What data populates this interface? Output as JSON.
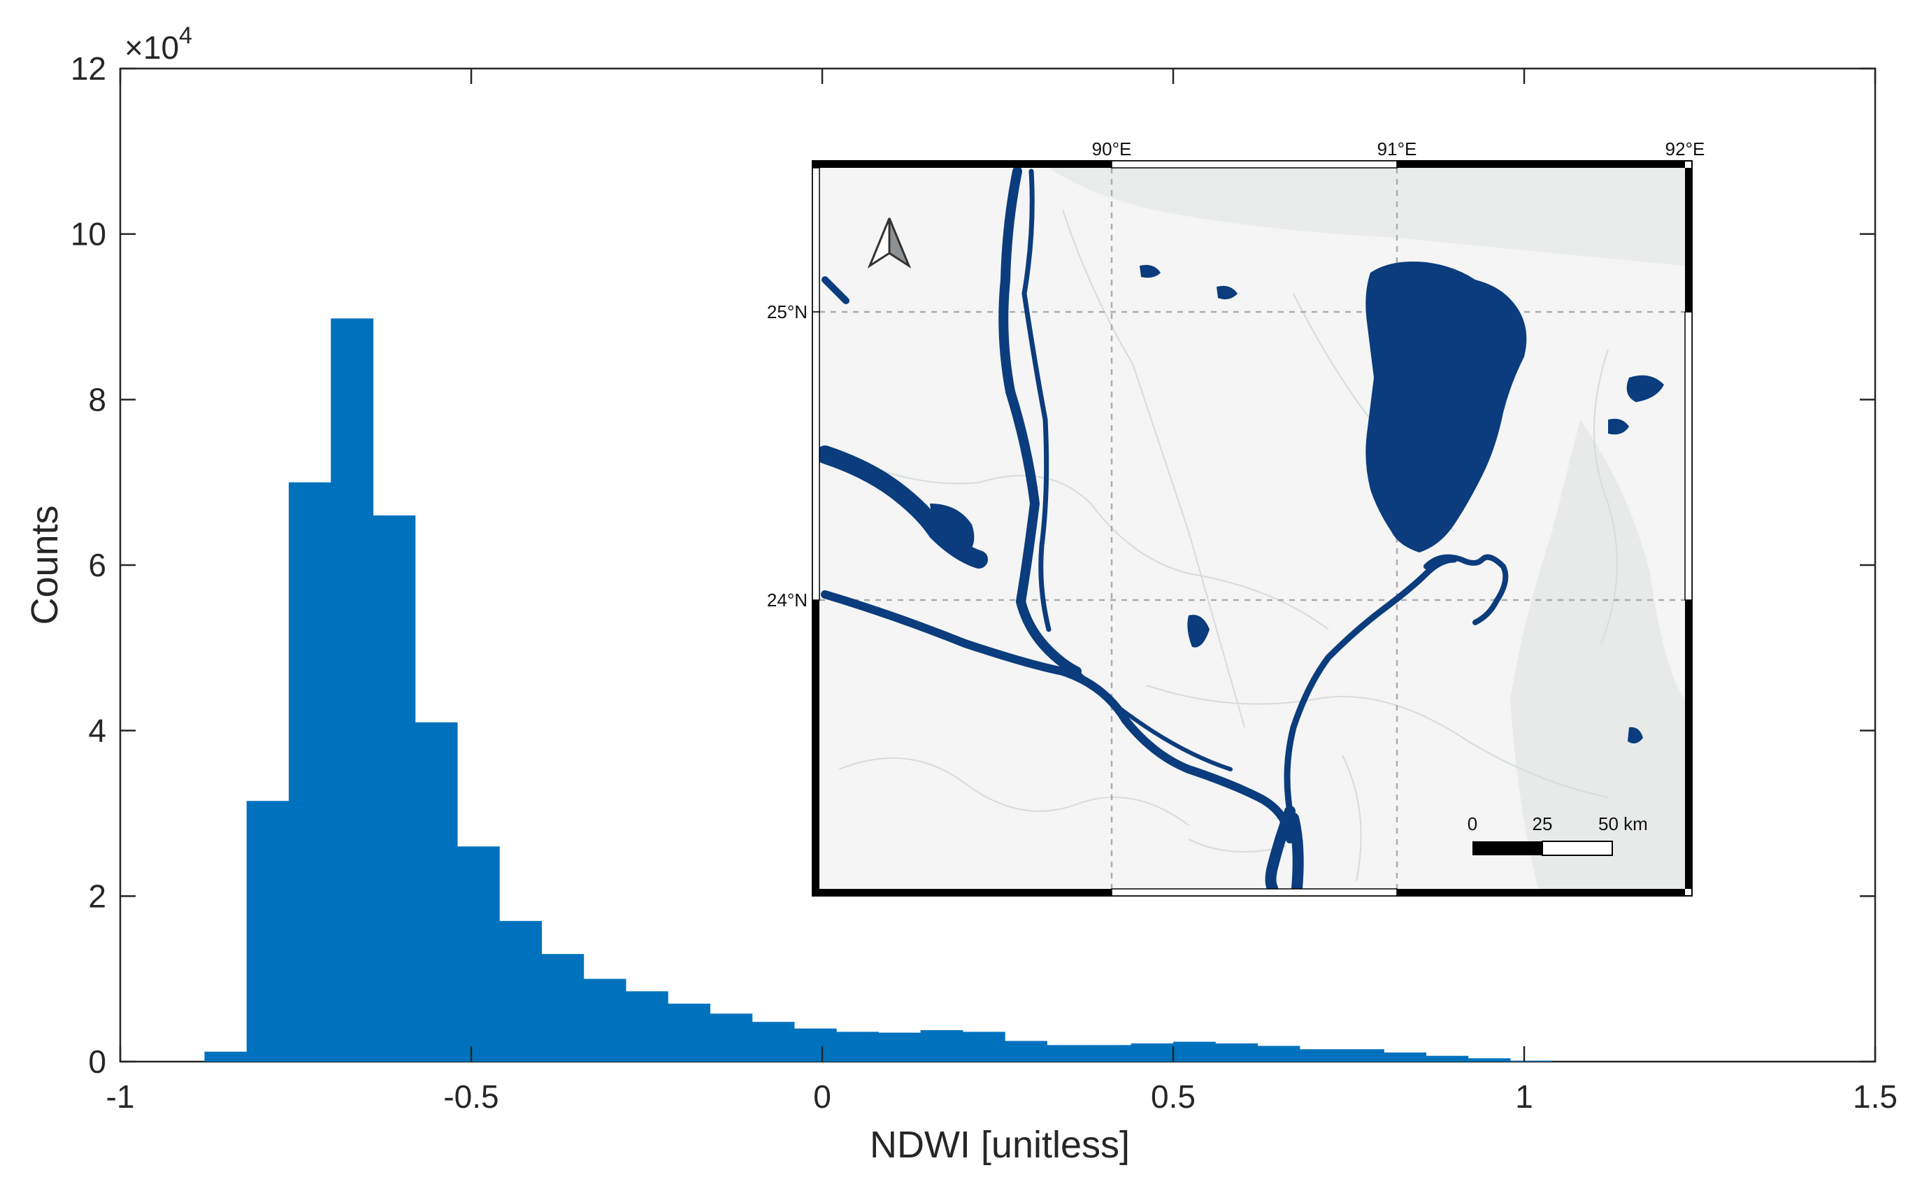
{
  "chart_data": {
    "type": "bar",
    "subtype": "histogram",
    "xlabel": "NDWI [unitless]",
    "ylabel": "Counts",
    "y_exponent_label": "×10",
    "y_exponent_power": "4",
    "xlim": [
      -1,
      1.5
    ],
    "ylim": [
      0,
      12
    ],
    "x_ticks": [
      -1,
      -0.5,
      0,
      0.5,
      1,
      1.5
    ],
    "x_tick_labels": [
      "-1",
      "-0.5",
      "0",
      "0.5",
      "1",
      "1.5"
    ],
    "y_ticks": [
      0,
      2,
      4,
      6,
      8,
      10,
      12
    ],
    "y_tick_labels": [
      "0",
      "2",
      "4",
      "6",
      "8",
      "10",
      "12"
    ],
    "bar_color": "#0072BD",
    "bin_edges": [
      -0.88,
      -0.82,
      -0.76,
      -0.7,
      -0.64,
      -0.58,
      -0.52,
      -0.46,
      -0.4,
      -0.34,
      -0.28,
      -0.22,
      -0.16,
      -0.1,
      -0.04,
      0.02,
      0.08,
      0.14,
      0.2,
      0.26,
      0.32,
      0.38,
      0.44,
      0.5,
      0.56,
      0.62,
      0.68,
      0.74,
      0.8,
      0.86,
      0.92,
      0.98,
      1.04
    ],
    "counts": [
      0.12,
      3.15,
      7.0,
      8.98,
      6.6,
      4.1,
      2.6,
      1.7,
      1.3,
      1.0,
      0.85,
      0.7,
      0.58,
      0.48,
      0.4,
      0.36,
      0.35,
      0.38,
      0.36,
      0.25,
      0.2,
      0.2,
      0.22,
      0.24,
      0.22,
      0.19,
      0.15,
      0.15,
      0.11,
      0.07,
      0.04,
      0.01
    ],
    "grid": false
  },
  "inset_map": {
    "lon_labels": [
      "90°E",
      "91°E",
      "92°E"
    ],
    "lat_labels": [
      "25°N",
      "24°N"
    ],
    "scale_labels": [
      "0",
      "25",
      "50 km"
    ],
    "north_arrow": "north-arrow-icon",
    "water_color": "#0B3C7D",
    "land_color": "#F4F5F4"
  }
}
